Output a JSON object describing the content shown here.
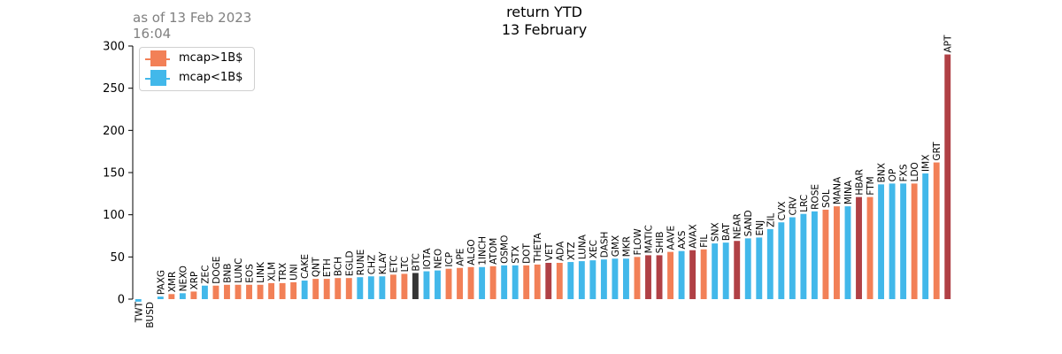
{
  "note": "as of 13 Feb 2023\n16:04",
  "chart_data": {
    "type": "bar",
    "title": "return YTD",
    "subtitle": "13 February",
    "xlabel": "",
    "ylabel": "",
    "ylim": [
      0,
      300
    ],
    "yticks": [
      0,
      50,
      100,
      150,
      200,
      250,
      300
    ],
    "grid": false,
    "legend_position": "top-left",
    "colors": {
      "mcap_gt_1b": "#f28057",
      "mcap_lt_1b": "#42b8ea",
      "dark_red": "#b04045",
      "dark_grey": "#353535"
    },
    "legend": [
      {
        "label": "mcap>1B$",
        "color": "#f28057"
      },
      {
        "label": "mcap<1B$",
        "color": "#42b8ea"
      }
    ],
    "categories": [
      "TWT",
      "BUSD",
      "PAXG",
      "XMR",
      "NEXO",
      "XRP",
      "ZEC",
      "DOGE",
      "BNB",
      "LUNC",
      "EOS",
      "LINK",
      "XLM",
      "TRX",
      "UNI",
      "CAKE",
      "QNT",
      "ETH",
      "BCH",
      "EGLD",
      "RUNE",
      "CHZ",
      "KLAY",
      "ETC",
      "LTC",
      "BTC",
      "IOTA",
      "NEO",
      "ICP",
      "APE",
      "ALGO",
      "1INCH",
      "ATOM",
      "OSMO",
      "STX",
      "DOT",
      "THETA",
      "VET",
      "ADA",
      "XTZ",
      "LUNA",
      "XEC",
      "DASH",
      "GMX",
      "MKR",
      "FLOW",
      "MATIC",
      "SHIB",
      "AAVE",
      "AXS",
      "AVAX",
      "FIL",
      "SNX",
      "BAT",
      "NEAR",
      "SAND",
      "ENJ",
      "ZIL",
      "CVX",
      "CRV",
      "LRC",
      "ROSE",
      "SOL",
      "MANA",
      "MINA",
      "HBAR",
      "FTM",
      "BNX",
      "OP",
      "FXS",
      "LDO",
      "IMX",
      "GRT",
      "APT"
    ],
    "values": [
      -3,
      0,
      3,
      6,
      7,
      9,
      16,
      16,
      17,
      17,
      17,
      17,
      19,
      19,
      20,
      22,
      24,
      24,
      25,
      25,
      26,
      27,
      27,
      29,
      30,
      31,
      33,
      34,
      36,
      37,
      38,
      38,
      39,
      40,
      40,
      40,
      41,
      43,
      43,
      44,
      45,
      46,
      47,
      48,
      48,
      50,
      52,
      52,
      56,
      57,
      58,
      59,
      66,
      67,
      69,
      72,
      73,
      83,
      91,
      97,
      101,
      104,
      106,
      110,
      110,
      121,
      121,
      136,
      137,
      137,
      137,
      149,
      162,
      290
    ],
    "bar_colors": [
      "#42b8ea",
      "#42b8ea",
      "#42b8ea",
      "#f28057",
      "#42b8ea",
      "#f28057",
      "#42b8ea",
      "#f28057",
      "#f28057",
      "#f28057",
      "#f28057",
      "#f28057",
      "#f28057",
      "#f28057",
      "#f28057",
      "#42b8ea",
      "#f28057",
      "#f28057",
      "#f28057",
      "#f28057",
      "#42b8ea",
      "#42b8ea",
      "#42b8ea",
      "#f28057",
      "#f28057",
      "#353535",
      "#42b8ea",
      "#42b8ea",
      "#f28057",
      "#f28057",
      "#f28057",
      "#42b8ea",
      "#f28057",
      "#42b8ea",
      "#42b8ea",
      "#f28057",
      "#f28057",
      "#b04045",
      "#f28057",
      "#42b8ea",
      "#42b8ea",
      "#42b8ea",
      "#42b8ea",
      "#42b8ea",
      "#42b8ea",
      "#f28057",
      "#b04045",
      "#b04045",
      "#f28057",
      "#42b8ea",
      "#b04045",
      "#f28057",
      "#42b8ea",
      "#42b8ea",
      "#b04045",
      "#42b8ea",
      "#42b8ea",
      "#42b8ea",
      "#42b8ea",
      "#42b8ea",
      "#42b8ea",
      "#42b8ea",
      "#f28057",
      "#f28057",
      "#42b8ea",
      "#b04045",
      "#f28057",
      "#42b8ea",
      "#42b8ea",
      "#42b8ea",
      "#f28057",
      "#42b8ea",
      "#f28057",
      "#b04045"
    ]
  }
}
